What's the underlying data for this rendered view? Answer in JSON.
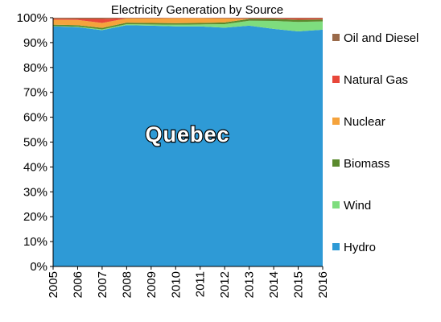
{
  "chart_data": {
    "type": "area",
    "stacked": true,
    "normalized_percent": true,
    "title": "Electricity Generation by Source",
    "overlay_label": "Quebec",
    "x": [
      "2005",
      "2006",
      "2007",
      "2008",
      "2009",
      "2010",
      "2011",
      "2012",
      "2013",
      "2014",
      "2015",
      "2016"
    ],
    "y_ticks": [
      "0%",
      "10%",
      "20%",
      "30%",
      "40%",
      "50%",
      "60%",
      "70%",
      "80%",
      "90%",
      "100%"
    ],
    "ylim": [
      0,
      100
    ],
    "grid": false,
    "legend_position": "right",
    "series": [
      {
        "name": "Hydro",
        "color": "#2E9AD6",
        "values": [
          96.5,
          96.2,
          95.0,
          97.0,
          96.8,
          96.5,
          96.5,
          96.0,
          96.8,
          95.5,
          94.5,
          95.2
        ]
      },
      {
        "name": "Wind",
        "color": "#7EDD7E",
        "values": [
          0.1,
          0.2,
          0.3,
          0.4,
          0.5,
          0.7,
          0.8,
          1.4,
          2.0,
          3.2,
          3.8,
          3.3
        ]
      },
      {
        "name": "Biomass",
        "color": "#5A8A2E",
        "values": [
          0.6,
          0.6,
          0.6,
          0.6,
          0.6,
          0.6,
          0.6,
          0.7,
          0.7,
          0.8,
          0.9,
          0.8
        ]
      },
      {
        "name": "Nuclear",
        "color": "#F5A33C",
        "values": [
          2.0,
          2.1,
          2.0,
          1.7,
          1.8,
          2.0,
          1.9,
          1.6,
          0.0,
          0.0,
          0.0,
          0.0
        ]
      },
      {
        "name": "Natural Gas",
        "color": "#E8473A",
        "values": [
          0.4,
          0.4,
          1.6,
          0.1,
          0.1,
          0.1,
          0.1,
          0.1,
          0.2,
          0.2,
          0.5,
          0.4
        ]
      },
      {
        "name": "Oil and Diesel",
        "color": "#9A6A4A",
        "values": [
          0.4,
          0.5,
          0.5,
          0.2,
          0.2,
          0.1,
          0.1,
          0.2,
          0.3,
          0.3,
          0.3,
          0.3
        ]
      }
    ],
    "legend_order": [
      "Oil and Diesel",
      "Natural Gas",
      "Nuclear",
      "Biomass",
      "Wind",
      "Hydro"
    ]
  }
}
